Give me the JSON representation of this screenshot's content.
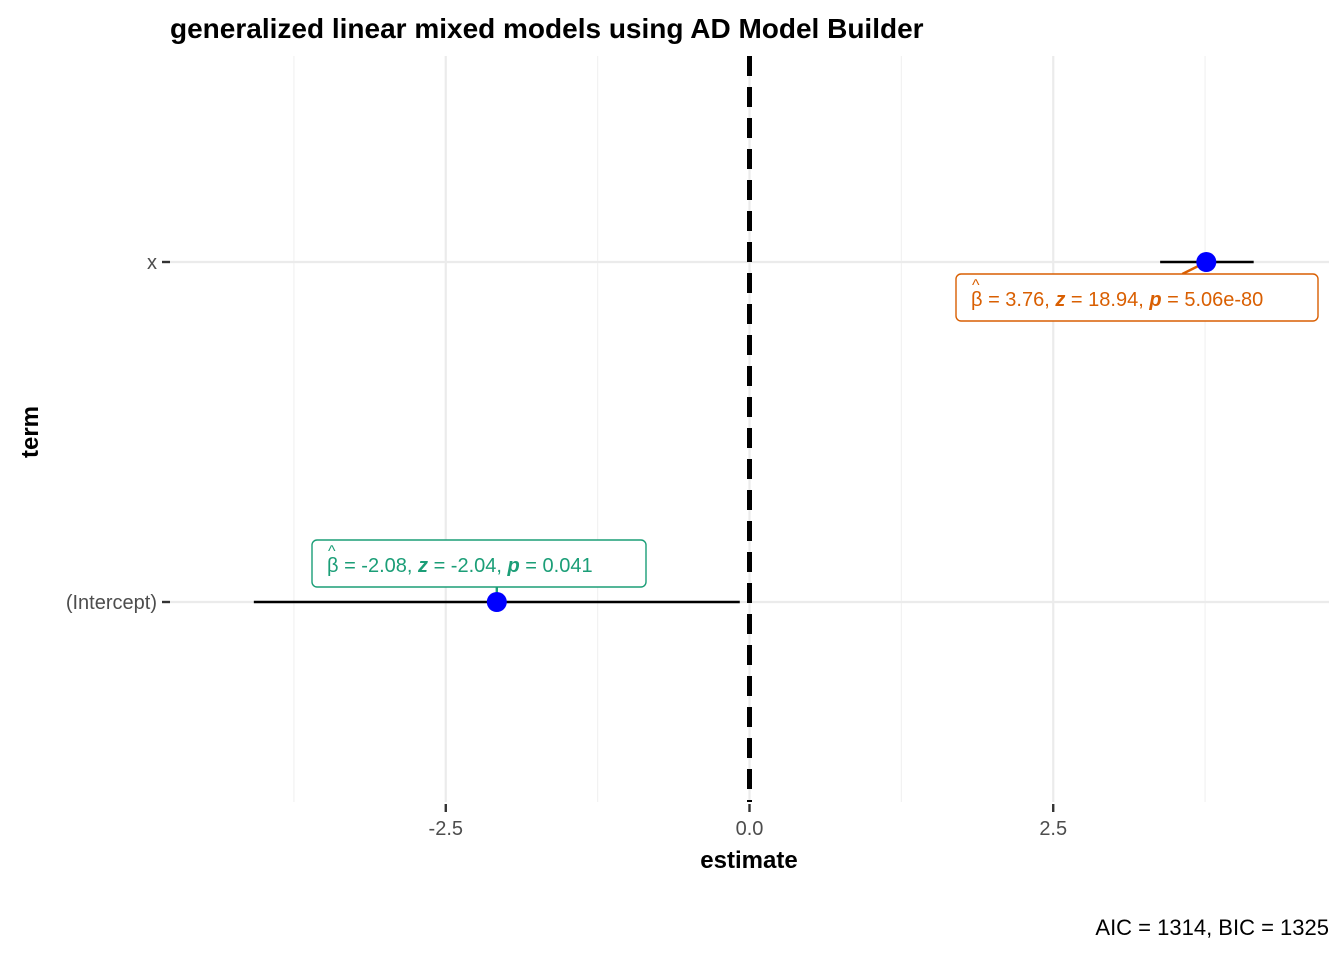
{
  "chart_data": {
    "type": "scatter",
    "title": "generalized linear mixed models using AD Model Builder",
    "xlabel": "estimate",
    "ylabel": "term",
    "caption": "AIC = 1314, BIC = 1325",
    "xlim": [
      -4.77,
      4.77
    ],
    "x_ticks": [
      "-2.5",
      "0.0",
      "2.5"
    ],
    "x_tick_values": [
      -2.5,
      0.0,
      2.5
    ],
    "reference_line_x": 0,
    "grid": true,
    "terms": [
      {
        "term": "x",
        "estimate": 3.76,
        "conf_low": 3.38,
        "conf_high": 4.15,
        "label": {
          "beta": "3.76",
          "z": "18.94",
          "p": "5.06e-80"
        },
        "color": "#D95F02"
      },
      {
        "term": "(Intercept)",
        "estimate": -2.08,
        "conf_low": -4.08,
        "conf_high": -0.08,
        "label": {
          "beta": "-2.08",
          "z": "-2.04",
          "p": "0.041"
        },
        "color": "#1B9E77"
      }
    ],
    "point_color": "#0000FF"
  }
}
